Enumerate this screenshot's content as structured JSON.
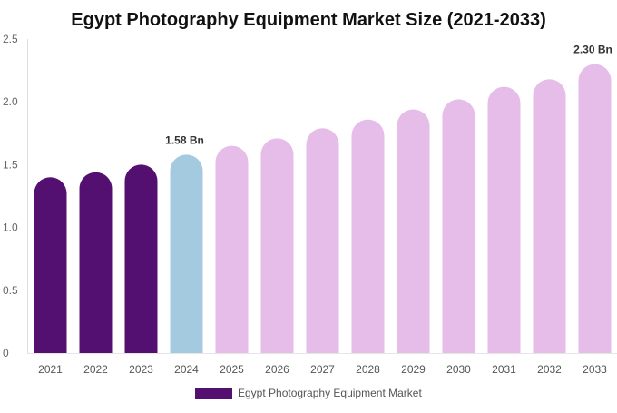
{
  "chart_data": {
    "type": "bar",
    "title": "Egypt Photography Equipment Market Size (2021-2033)",
    "xlabel": "",
    "ylabel": "",
    "ylim": [
      0,
      2.5
    ],
    "yticks": [
      "0",
      "0.5",
      "1.0",
      "1.5",
      "2.0",
      "2.5"
    ],
    "grid": false,
    "legend_placement": "bottom",
    "categories": [
      "2021",
      "2022",
      "2023",
      "2024",
      "2025",
      "2026",
      "2027",
      "2028",
      "2029",
      "2030",
      "2031",
      "2032",
      "2033"
    ],
    "series": [
      {
        "name": "Egypt Photography Equipment Market",
        "values": [
          1.4,
          1.44,
          1.5,
          1.58,
          1.65,
          1.71,
          1.79,
          1.86,
          1.94,
          2.02,
          2.12,
          2.18,
          2.3
        ]
      }
    ],
    "bar_colors": [
      "#541071",
      "#541071",
      "#541071",
      "#a3cadf",
      "#e6bde9",
      "#e6bde9",
      "#e6bde9",
      "#e6bde9",
      "#e6bde9",
      "#e6bde9",
      "#e6bde9",
      "#e6bde9",
      "#e6bde9"
    ],
    "data_labels": [
      {
        "category": "2024",
        "text": "1.58 Bn"
      },
      {
        "category": "2033",
        "text": "2.30 Bn"
      }
    ],
    "legend_color": "#541071"
  }
}
